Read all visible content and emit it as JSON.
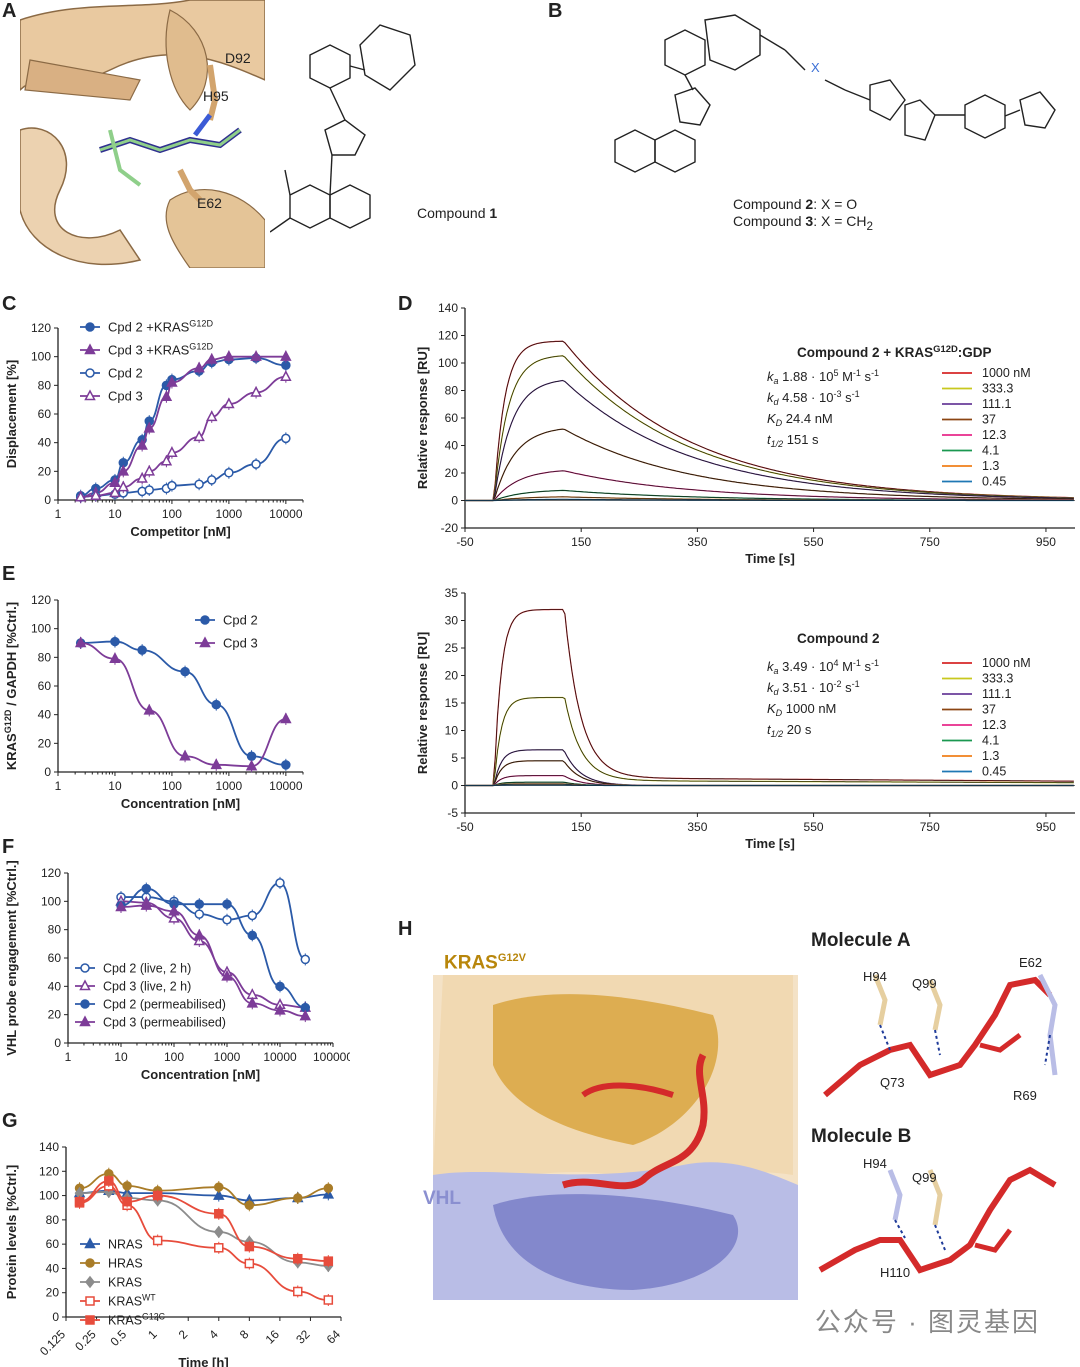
{
  "panels": {
    "A": {
      "letter": "A",
      "labels": [
        "D92",
        "H95",
        "E62"
      ],
      "compound_label": "Compound ",
      "compound_num": "1"
    },
    "B": {
      "letter": "B",
      "line1_pre": "Compound ",
      "line1_num": "2",
      "line1_post": ": X = O",
      "line2_pre": "Compound ",
      "line2_num": "3",
      "line2_post": ": X = CH",
      "line2_sub": "2"
    },
    "C": {
      "letter": "C"
    },
    "D": {
      "letter": "D"
    },
    "E": {
      "letter": "E"
    },
    "F": {
      "letter": "F"
    },
    "G": {
      "letter": "G"
    },
    "H": {
      "letter": "H",
      "kras_label": "KRAS",
      "kras_sup": "G12V",
      "vhl_label": "VHL",
      "molA_title": "Molecule A",
      "molA_labels": [
        "H94",
        "Q99",
        "E62",
        "Q73",
        "R69"
      ],
      "molB_title": "Molecule B",
      "molB_labels": [
        "H94",
        "Q99",
        "H110"
      ]
    }
  },
  "watermark": "公众号 · 图灵基因",
  "chart_data": [
    {
      "id": "C",
      "type": "scatter",
      "xlabel": "Competitor [nM]",
      "ylabel": "Displacement [%]",
      "xscale": "log",
      "xlim": [
        1,
        20000
      ],
      "ylim": [
        0,
        120
      ],
      "xticks": [
        "1",
        "10",
        "100",
        "1000",
        "10000"
      ],
      "yticks": [
        "0",
        "20",
        "40",
        "60",
        "80",
        "100",
        "120"
      ],
      "legend": "top-left",
      "series": [
        {
          "name": "Cpd 2 +KRAS",
          "name_sup": "G12D",
          "color": "#2b5aa8",
          "marker": "circle-filled",
          "x": [
            2.5,
            4.6,
            10,
            14,
            30,
            40,
            80,
            100,
            300,
            500,
            1000,
            3000,
            10000
          ],
          "y": [
            3,
            8,
            14,
            26,
            42,
            55,
            80,
            84,
            90,
            96,
            98,
            99,
            94
          ]
        },
        {
          "name": "Cpd 3 +KRAS",
          "name_sup": "G12D",
          "color": "#7d3c98",
          "marker": "triangle-filled",
          "x": [
            2.5,
            4.6,
            10,
            14,
            30,
            40,
            80,
            100,
            300,
            500,
            1000,
            3000,
            10000
          ],
          "y": [
            2,
            5,
            12,
            20,
            38,
            50,
            72,
            82,
            92,
            98,
            100,
            100,
            100
          ]
        },
        {
          "name": "Cpd 2",
          "color": "#2b5aa8",
          "marker": "circle-open",
          "x": [
            2.5,
            4.6,
            10,
            14,
            30,
            40,
            80,
            100,
            300,
            500,
            1000,
            3000,
            10000
          ],
          "y": [
            2,
            3,
            4,
            5,
            6,
            7,
            8,
            10,
            11,
            14,
            19,
            25,
            43
          ]
        },
        {
          "name": "Cpd 3",
          "color": "#7d3c98",
          "marker": "triangle-open",
          "x": [
            2.5,
            4.6,
            10,
            14,
            30,
            40,
            80,
            100,
            300,
            500,
            1000,
            3000,
            10000
          ],
          "y": [
            2,
            3,
            5,
            9,
            15,
            20,
            27,
            33,
            44,
            58,
            67,
            75,
            86
          ]
        }
      ]
    },
    {
      "id": "D1",
      "type": "line",
      "title": "Compound 2 + KRAS",
      "title_sup": "G12D",
      "title_post": ":GDP",
      "xlabel": "Time [s]",
      "ylabel": "Relative response [RU]",
      "xlim": [
        -50,
        1000
      ],
      "ylim": [
        -20,
        140
      ],
      "xticks": [
        "-50",
        "150",
        "350",
        "550",
        "750",
        "950"
      ],
      "yticks": [
        "-20",
        "0",
        "20",
        "40",
        "60",
        "80",
        "100",
        "120",
        "140"
      ],
      "params": [
        {
          "sym": "k",
          "sub": "a",
          "val": "1.88 · 10",
          "exp": "5",
          "unit": " M",
          "uexp": "-1",
          "unit2": " s",
          "uexp2": "-1"
        },
        {
          "sym": "k",
          "sub": "d",
          "val": "4.58 · 10",
          "exp": "-3",
          "unit": " s",
          "uexp": "-1"
        },
        {
          "sym": "K",
          "sub": "D",
          "val": "24.4 nM"
        },
        {
          "sym": "t",
          "sub": "1/2",
          "val": "151 s"
        }
      ],
      "series": [
        {
          "name": "1000 nM",
          "color": "#d62728",
          "plateau": 116
        },
        {
          "name": "333.3",
          "color": "#c8c81e",
          "plateau": 106
        },
        {
          "name": "111.1",
          "color": "#6a3d9a",
          "plateau": 89
        },
        {
          "name": "37",
          "color": "#8b4513",
          "plateau": 54
        },
        {
          "name": "12.3",
          "color": "#e7298a",
          "plateau": 23
        },
        {
          "name": "4.1",
          "color": "#1a9850",
          "plateau": 8
        },
        {
          "name": "1.3",
          "color": "#f07f19",
          "plateau": 3
        },
        {
          "name": "0.45",
          "color": "#1f78b4",
          "plateau": 1
        }
      ]
    },
    {
      "id": "D2",
      "type": "line",
      "title": "Compound 2",
      "xlabel": "Time [s]",
      "ylabel": "Relative response [RU]",
      "xlim": [
        -50,
        1000
      ],
      "ylim": [
        -5,
        35
      ],
      "xticks": [
        "-50",
        "150",
        "350",
        "550",
        "750",
        "950"
      ],
      "yticks": [
        "-5",
        "0",
        "5",
        "10",
        "15",
        "20",
        "25",
        "30",
        "35"
      ],
      "params": [
        {
          "sym": "k",
          "sub": "a",
          "val": "3.49 · 10",
          "exp": "4",
          "unit": " M",
          "uexp": "-1",
          "unit2": " s",
          "uexp2": "-1"
        },
        {
          "sym": "k",
          "sub": "d",
          "val": "3.51 · 10",
          "exp": "-2",
          "unit": " s",
          "uexp": "-1"
        },
        {
          "sym": "K",
          "sub": "D",
          "val": "1000 nM"
        },
        {
          "sym": "t",
          "sub": "1/2",
          "val": "20 s"
        }
      ],
      "series": [
        {
          "name": "1000 nM",
          "color": "#d62728",
          "plateau": 32
        },
        {
          "name": "333.3",
          "color": "#c8c81e",
          "plateau": 16
        },
        {
          "name": "111.1",
          "color": "#6a3d9a",
          "plateau": 6.5
        },
        {
          "name": "37",
          "color": "#8b4513",
          "plateau": 4.5
        },
        {
          "name": "12.3",
          "color": "#e7298a",
          "plateau": 1.8
        },
        {
          "name": "4.1",
          "color": "#1a9850",
          "plateau": 0.6
        },
        {
          "name": "1.3",
          "color": "#f07f19",
          "plateau": 0.3
        },
        {
          "name": "0.45",
          "color": "#1f78b4",
          "plateau": 0.1
        }
      ]
    },
    {
      "id": "E",
      "type": "scatter",
      "xlabel": "Concentration [nM]",
      "ylabel": "KRAS",
      "ylabel_sup": "G12D",
      "ylabel_post": " / GAPDH [%Ctrl.]",
      "xscale": "log",
      "xlim": [
        1,
        20000
      ],
      "ylim": [
        0,
        120
      ],
      "xticks": [
        "1",
        "10",
        "100",
        "1000",
        "10000"
      ],
      "yticks": [
        "0",
        "20",
        "40",
        "60",
        "80",
        "100",
        "120"
      ],
      "legend": "top-right",
      "series": [
        {
          "name": "Cpd 2",
          "color": "#2b5aa8",
          "marker": "circle-filled",
          "x": [
            2.5,
            10,
            30,
            170,
            600,
            2500,
            10000
          ],
          "y": [
            90,
            91,
            85,
            70,
            47,
            11,
            5
          ]
        },
        {
          "name": "Cpd 3",
          "color": "#7d3c98",
          "marker": "triangle-filled",
          "x": [
            2.5,
            10,
            40,
            170,
            600,
            2500,
            10000
          ],
          "y": [
            90,
            79,
            43,
            11,
            5,
            4,
            37
          ]
        }
      ]
    },
    {
      "id": "F",
      "type": "scatter",
      "xlabel": "Concentration [nM]",
      "ylabel": "VHL probe engagement [%Ctrl.]",
      "xscale": "log",
      "xlim": [
        1,
        100000
      ],
      "ylim": [
        0,
        120
      ],
      "xticks": [
        "1",
        "10",
        "100",
        "1000",
        "10000",
        "100000"
      ],
      "yticks": [
        "0",
        "20",
        "40",
        "60",
        "80",
        "100",
        "120"
      ],
      "legend": "bottom-left",
      "series": [
        {
          "name": "Cpd 2 (live, 2 h)",
          "color": "#2b5aa8",
          "marker": "circle-open",
          "x": [
            10,
            30,
            100,
            300,
            1000,
            3000,
            10000,
            30000
          ],
          "y": [
            103,
            103,
            100,
            91,
            87,
            90,
            113,
            59
          ]
        },
        {
          "name": "Cpd 3 (live, 2 h)",
          "color": "#7d3c98",
          "marker": "triangle-open",
          "x": [
            10,
            30,
            100,
            300,
            1000,
            3000,
            10000,
            30000
          ],
          "y": [
            100,
            99,
            88,
            72,
            50,
            34,
            27,
            25
          ]
        },
        {
          "name": "Cpd 2 (permeabilised)",
          "color": "#2b5aa8",
          "marker": "circle-filled",
          "x": [
            10,
            30,
            100,
            300,
            1000,
            3000,
            10000,
            30000
          ],
          "y": [
            97,
            109,
            98,
            98,
            98,
            76,
            40,
            25
          ]
        },
        {
          "name": "Cpd 3 (permeabilised)",
          "color": "#7d3c98",
          "marker": "triangle-filled",
          "x": [
            10,
            30,
            100,
            300,
            1000,
            3000,
            10000,
            30000
          ],
          "y": [
            96,
            97,
            93,
            76,
            47,
            28,
            23,
            19
          ]
        }
      ]
    },
    {
      "id": "G",
      "type": "line",
      "xlabel": "Time [h]",
      "ylabel": "Protein levels [%Ctrl.]",
      "xscale": "log2",
      "xlim": [
        0.125,
        64
      ],
      "ylim": [
        0,
        140
      ],
      "xticks": [
        "0.125",
        "0.25",
        "0.5",
        "1",
        "2",
        "4",
        "8",
        "16",
        "32",
        "64"
      ],
      "yticks": [
        "0",
        "20",
        "40",
        "60",
        "80",
        "100",
        "120",
        "140"
      ],
      "legend": "bottom-left",
      "series": [
        {
          "name": "NRAS",
          "color": "#2b5aa8",
          "marker": "triangle-filled",
          "x": [
            0.17,
            0.33,
            0.5,
            1,
            4,
            8,
            24,
            48
          ],
          "y": [
            102,
            104,
            102,
            102,
            100,
            96,
            98,
            101
          ]
        },
        {
          "name": "HRAS",
          "color": "#a97c28",
          "marker": "circle-filled",
          "x": [
            0.17,
            0.33,
            0.5,
            1,
            4,
            8,
            24,
            48
          ],
          "y": [
            106,
            118,
            108,
            104,
            107,
            92,
            98,
            106
          ]
        },
        {
          "name": "KRAS",
          "color": "#8c8c8c",
          "marker": "diamond-filled",
          "x": [
            0.17,
            0.33,
            0.5,
            1,
            4,
            8,
            24,
            48
          ],
          "y": [
            102,
            103,
            98,
            96,
            70,
            62,
            45,
            42
          ]
        },
        {
          "name": "KRAS",
          "name_sup": "WT",
          "color": "#e74c3c",
          "marker": "square-open",
          "x": [
            0.17,
            0.33,
            0.5,
            1,
            4,
            8,
            24,
            48
          ],
          "y": [
            94,
            108,
            92,
            63,
            57,
            44,
            21,
            14
          ]
        },
        {
          "name": "KRAS",
          "name_sup": "G12C",
          "color": "#e74c3c",
          "marker": "square-filled",
          "x": [
            0.17,
            0.33,
            0.5,
            1,
            4,
            8,
            24,
            48
          ],
          "y": [
            95,
            112,
            95,
            100,
            85,
            58,
            48,
            46
          ]
        }
      ]
    }
  ]
}
